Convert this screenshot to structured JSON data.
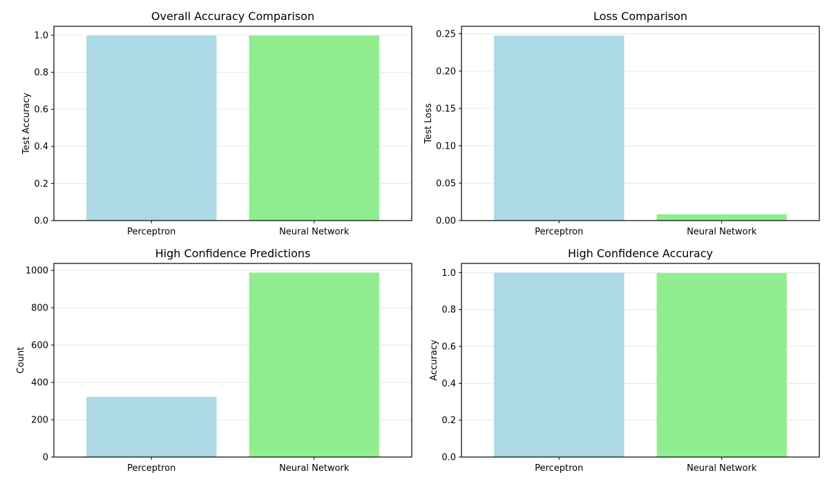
{
  "chart_data": [
    {
      "type": "bar",
      "title": "Overall Accuracy Comparison",
      "xlabel": "",
      "ylabel": "Test Accuracy",
      "categories": [
        "Perceptron",
        "Neural Network"
      ],
      "values": [
        0.998,
        0.998
      ],
      "colors": [
        "#add8e6",
        "#90ee90"
      ],
      "ylim": [
        0,
        1.048
      ],
      "yticks": [
        0.0,
        0.2,
        0.4,
        0.6,
        0.8,
        1.0
      ],
      "ytick_labels": [
        "0.0",
        "0.2",
        "0.4",
        "0.6",
        "0.8",
        "1.0"
      ],
      "grid": true
    },
    {
      "type": "bar",
      "title": "Loss Comparison",
      "xlabel": "",
      "ylabel": "Test Loss",
      "categories": [
        "Perceptron",
        "Neural Network"
      ],
      "values": [
        0.2475,
        0.0085
      ],
      "colors": [
        "#add8e6",
        "#90ee90"
      ],
      "ylim": [
        0,
        0.26
      ],
      "yticks": [
        0.0,
        0.05,
        0.1,
        0.15,
        0.2,
        0.25
      ],
      "ytick_labels": [
        "0.00",
        "0.05",
        "0.10",
        "0.15",
        "0.20",
        "0.25"
      ],
      "grid": true
    },
    {
      "type": "bar",
      "title": "High Confidence Predictions",
      "xlabel": "",
      "ylabel": "Count",
      "categories": [
        "Perceptron",
        "Neural Network"
      ],
      "values": [
        322,
        988
      ],
      "colors": [
        "#add8e6",
        "#90ee90"
      ],
      "ylim": [
        0,
        1037
      ],
      "yticks": [
        0,
        200,
        400,
        600,
        800,
        1000
      ],
      "ytick_labels": [
        "0",
        "200",
        "400",
        "600",
        "800",
        "1000"
      ],
      "grid": true
    },
    {
      "type": "bar",
      "title": "High Confidence Accuracy",
      "xlabel": "",
      "ylabel": "Accuracy",
      "categories": [
        "Perceptron",
        "Neural Network"
      ],
      "values": [
        1.0,
        0.998
      ],
      "colors": [
        "#add8e6",
        "#90ee90"
      ],
      "ylim": [
        0,
        1.05
      ],
      "yticks": [
        0.0,
        0.2,
        0.4,
        0.6,
        0.8,
        1.0
      ],
      "ytick_labels": [
        "0.0",
        "0.2",
        "0.4",
        "0.6",
        "0.8",
        "1.0"
      ],
      "grid": true
    }
  ]
}
